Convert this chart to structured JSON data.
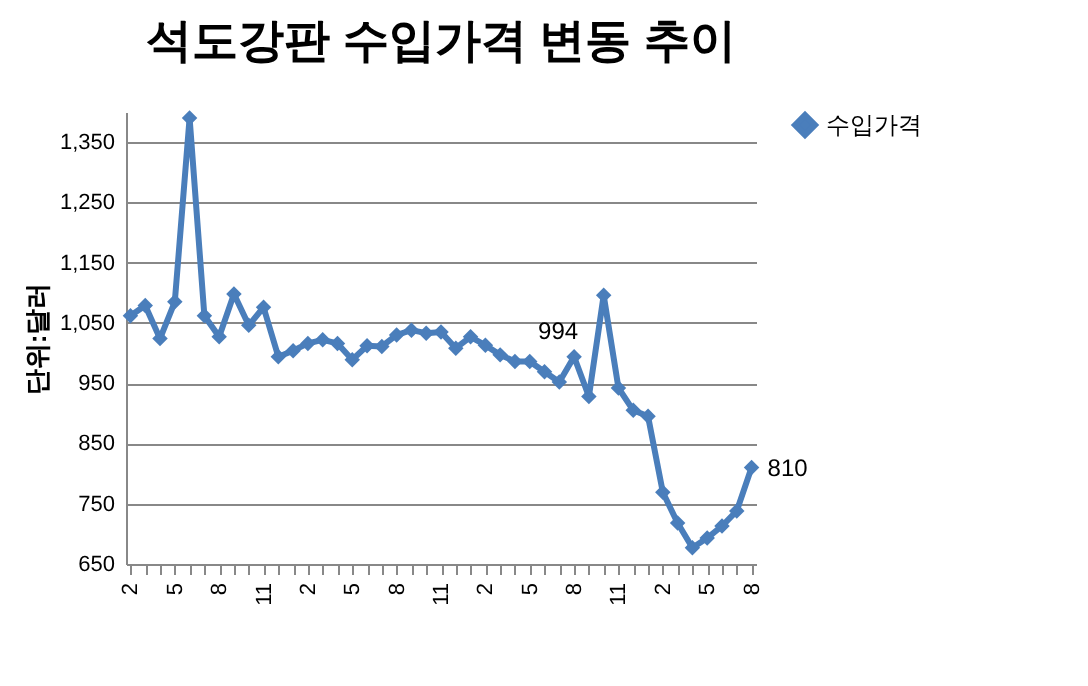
{
  "chart_data": {
    "type": "line",
    "title": "석도강판 수입가격 변동 추이",
    "ylabel": "단위:달러",
    "categories": [
      "2",
      null,
      null,
      "5",
      null,
      null,
      "8",
      null,
      null,
      "11",
      null,
      null,
      "2",
      null,
      null,
      "5",
      null,
      null,
      "8",
      null,
      null,
      "11",
      null,
      null,
      "2",
      null,
      null,
      "5",
      null,
      null,
      "8",
      null,
      null,
      "11",
      null,
      null,
      "2",
      null,
      null,
      "5",
      null,
      null,
      "8"
    ],
    "series": [
      {
        "name": "수입가격",
        "color": "#4a7ebb",
        "values": [
          1062,
          1079,
          1024,
          1085,
          1390,
          1062,
          1027,
          1098,
          1046,
          1076,
          994,
          1004,
          1016,
          1022,
          1016,
          989,
          1012,
          1011,
          1030,
          1038,
          1033,
          1035,
          1008,
          1027,
          1013,
          997,
          986,
          986,
          969,
          952,
          994,
          928,
          1096,
          942,
          905,
          895,
          769,
          718,
          677,
          693,
          713,
          738,
          810
        ],
        "value_labels": [
          null,
          null,
          null,
          null,
          null,
          null,
          null,
          null,
          null,
          null,
          null,
          null,
          null,
          null,
          null,
          null,
          null,
          null,
          null,
          null,
          null,
          null,
          null,
          null,
          null,
          null,
          null,
          null,
          null,
          null,
          "994",
          null,
          null,
          null,
          null,
          null,
          null,
          null,
          null,
          null,
          null,
          null,
          "810"
        ]
      }
    ],
    "ylim": [
      650,
      1400
    ],
    "yticks": [
      650,
      750,
      850,
      950,
      {
        "value": 1050,
        "label": "1,050"
      },
      {
        "value": 1150,
        "label": "1,150"
      },
      {
        "value": 1250,
        "label": "1,250"
      },
      {
        "value": 1350,
        "label": "1,350"
      }
    ],
    "grid": "y",
    "legend": "right",
    "marker": "diamond",
    "line_style": "solid"
  }
}
